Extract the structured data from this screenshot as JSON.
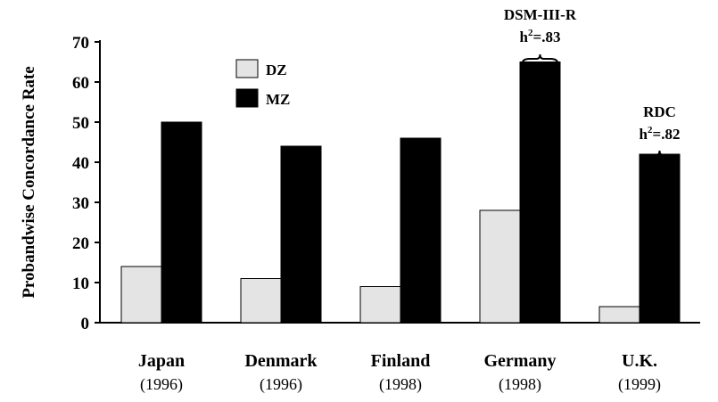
{
  "chart_data": {
    "type": "bar",
    "ylabel": "Probandwise Concordance Rate",
    "ylim": [
      0,
      70
    ],
    "yticks": [
      0,
      10,
      20,
      30,
      40,
      50,
      60,
      70
    ],
    "categories": [
      "Japan",
      "Denmark",
      "Finland",
      "Germany",
      "U.K."
    ],
    "category_years": [
      "(1996)",
      "(1996)",
      "(1998)",
      "(1998)",
      "(1999)"
    ],
    "series": [
      {
        "name": "DZ",
        "color": "#e4e4e4",
        "values": [
          14,
          11,
          9,
          28,
          4
        ]
      },
      {
        "name": "MZ",
        "color": "#000000",
        "values": [
          50,
          44,
          46,
          65,
          42
        ]
      }
    ],
    "legend_position": "top-left",
    "grid": false,
    "annotations": [
      {
        "category": "Germany",
        "lines": [
          "DSM-III-R",
          "h",
          "2",
          "=.83"
        ]
      },
      {
        "category": "U.K.",
        "lines": [
          "RDC",
          "h",
          "2",
          "=.82"
        ]
      }
    ]
  }
}
